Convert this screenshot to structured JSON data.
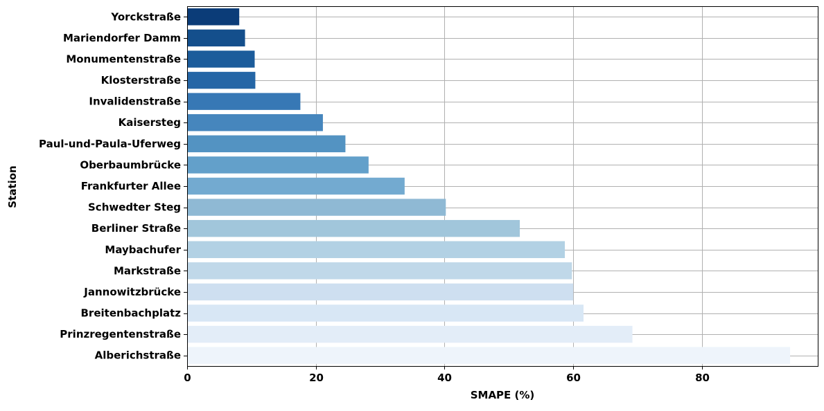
{
  "chart_data": {
    "type": "bar",
    "orientation": "horizontal",
    "categories": [
      "Yorckstraße",
      "Mariendorfer Damm",
      "Monumentenstraße",
      "Klosterstraße",
      "Invalidenstraße",
      "Kaisersteg",
      "Paul-und-Paula-Uferweg",
      "Oberbaumbrücke",
      "Frankfurter Allee",
      "Schwedter Steg",
      "Berliner Straße",
      "Maybachufer",
      "Markstraße",
      "Jannowitzbrücke",
      "Breitenbachplatz",
      "Prinzregentenstraße",
      "Alberichstraße"
    ],
    "values": [
      8.1,
      9.0,
      10.5,
      10.6,
      17.6,
      21.1,
      24.6,
      28.2,
      33.8,
      40.2,
      51.7,
      58.7,
      59.8,
      60.0,
      61.6,
      69.2,
      93.7
    ],
    "colors": [
      "#0b3c78",
      "#144f8c",
      "#1c5c9b",
      "#2566a6",
      "#3778b5",
      "#4686bd",
      "#5393c2",
      "#63a0ca",
      "#73aad0",
      "#8fb9d4",
      "#a1c6db",
      "#b2d1e4",
      "#c0d8e9",
      "#cedff0",
      "#d8e7f5",
      "#e3edf8",
      "#eef4fb"
    ],
    "title": "",
    "xlabel": "SMAPE (%)",
    "ylabel": "Station",
    "xlim": [
      0,
      98
    ],
    "xticks": [
      0,
      20,
      40,
      60,
      80
    ],
    "grid": true
  }
}
